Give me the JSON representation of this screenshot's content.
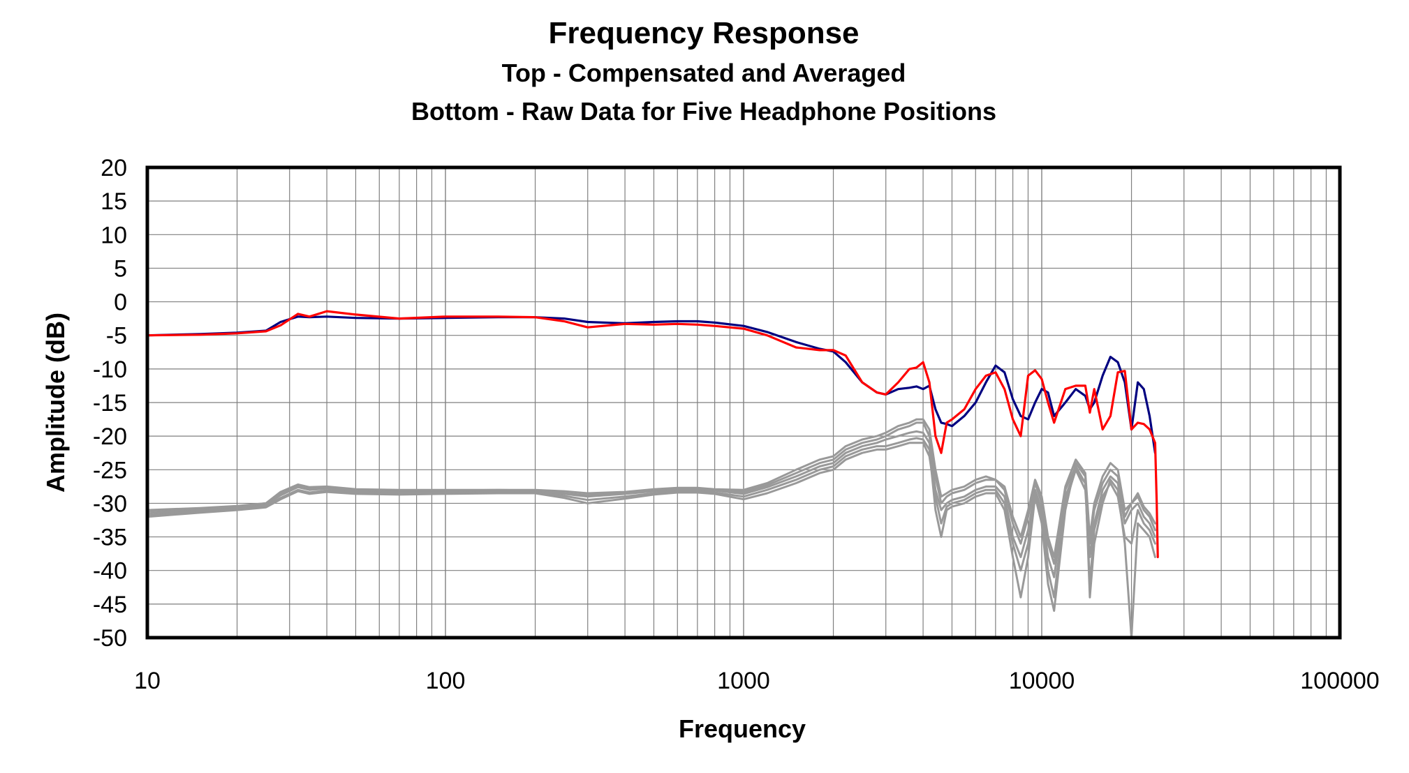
{
  "chart_data": {
    "type": "line",
    "title": "Frequency Response",
    "subtitle_lines": [
      "Top -  Compensated and Averaged",
      "Bottom - Raw Data for Five Headphone Positions"
    ],
    "xlabel": "Frequency",
    "ylabel": "Amplitude (dB)",
    "x_scale": "log",
    "xlim": [
      10,
      100000
    ],
    "ylim": [
      -50,
      20
    ],
    "x_ticks": [
      "10",
      "100",
      "1000",
      "10000",
      "100000"
    ],
    "y_ticks": [
      "20",
      "15",
      "10",
      "5",
      "0",
      "-5",
      "-10",
      "-15",
      "-20",
      "-25",
      "-30",
      "-35",
      "-40",
      "-45",
      "-50"
    ],
    "grid": true,
    "legend": "none",
    "series": [
      {
        "color": "#000080",
        "x": [
          10,
          15,
          20,
          25,
          28,
          32,
          35,
          40,
          50,
          70,
          100,
          150,
          200,
          250,
          300,
          400,
          500,
          600,
          700,
          800,
          1000,
          1200,
          1500,
          1800,
          2000,
          2200,
          2500,
          2800,
          3000,
          3300,
          3600,
          3800,
          4000,
          4200,
          4400,
          4600,
          4800,
          5000,
          5500,
          6000,
          6500,
          7000,
          7500,
          8000,
          8500,
          9000,
          9500,
          10000,
          10500,
          11000,
          12000,
          13000,
          14000,
          14500,
          15000,
          16000,
          17000,
          18000,
          19000,
          20000,
          21000,
          22000,
          23000,
          24000
        ],
        "y": [
          -5,
          -4.8,
          -4.6,
          -4.3,
          -3,
          -2.2,
          -2.3,
          -2.2,
          -2.4,
          -2.5,
          -2.4,
          -2.3,
          -2.3,
          -2.5,
          -3,
          -3.2,
          -3,
          -2.9,
          -2.9,
          -3.1,
          -3.6,
          -4.5,
          -6,
          -7,
          -7.4,
          -9,
          -12,
          -13.5,
          -13.8,
          -13,
          -12.8,
          -12.6,
          -13,
          -12.5,
          -16,
          -18,
          -18.2,
          -18.5,
          -17,
          -15,
          -12,
          -9.5,
          -10.5,
          -14.5,
          -17,
          -17.5,
          -15,
          -13,
          -13.5,
          -17,
          -15,
          -13,
          -14,
          -16,
          -15,
          -11,
          -8.2,
          -9,
          -12,
          -19,
          -12,
          -13,
          -17,
          -22.5
        ]
      },
      {
        "color": "#ff0000",
        "x": [
          10,
          15,
          20,
          25,
          28,
          32,
          35,
          40,
          50,
          70,
          100,
          150,
          200,
          250,
          300,
          400,
          500,
          600,
          700,
          800,
          1000,
          1200,
          1500,
          1800,
          2000,
          2200,
          2500,
          2800,
          3000,
          3300,
          3600,
          3800,
          4000,
          4200,
          4400,
          4600,
          4800,
          5000,
          5500,
          6000,
          6500,
          7000,
          7500,
          8000,
          8500,
          9000,
          9500,
          10000,
          10500,
          11000,
          12000,
          13000,
          14000,
          14500,
          15000,
          16000,
          17000,
          18000,
          19000,
          20000,
          21000,
          22000,
          23000,
          24000,
          24300,
          24500
        ],
        "y": [
          -5,
          -4.9,
          -4.7,
          -4.4,
          -3.5,
          -1.8,
          -2.2,
          -1.4,
          -1.9,
          -2.5,
          -2.2,
          -2.2,
          -2.3,
          -2.9,
          -3.8,
          -3.3,
          -3.4,
          -3.3,
          -3.4,
          -3.6,
          -4,
          -5,
          -6.8,
          -7.2,
          -7.2,
          -8,
          -12,
          -13.5,
          -13.8,
          -12,
          -10,
          -9.8,
          -9,
          -12,
          -20,
          -22.5,
          -18,
          -17.5,
          -16,
          -13,
          -11,
          -10.5,
          -13,
          -17.5,
          -20,
          -11,
          -10.2,
          -11.5,
          -15,
          -18,
          -13,
          -12.5,
          -12.5,
          -16.5,
          -13,
          -19,
          -17,
          -10.5,
          -10.3,
          -19,
          -18,
          -18.2,
          -19,
          -21,
          -30,
          -38
        ]
      },
      {
        "color": "#999999",
        "x": [
          10,
          15,
          20,
          25,
          28,
          32,
          35,
          40,
          50,
          70,
          100,
          150,
          200,
          250,
          300,
          400,
          500,
          600,
          700,
          800,
          1000,
          1200,
          1500,
          1800,
          2000,
          2200,
          2500,
          2800,
          3000,
          3300,
          3600,
          3800,
          4000,
          4200,
          4400,
          4600,
          4800,
          5000,
          5500,
          6000,
          6500,
          7000,
          7500,
          8000,
          8500,
          9000,
          9500,
          10000,
          10500,
          11000,
          12000,
          13000,
          14000,
          14500,
          15000,
          16000,
          17000,
          18000,
          19000,
          20000,
          21000,
          22000,
          23000,
          24000
        ],
        "y": [
          -31.5,
          -31,
          -30.6,
          -30.2,
          -28.8,
          -27.6,
          -28,
          -27.8,
          -28.2,
          -28.3,
          -28.2,
          -28.2,
          -28.2,
          -28.6,
          -29,
          -28.6,
          -28.2,
          -28,
          -28,
          -28.1,
          -28.6,
          -27.6,
          -26,
          -24.5,
          -24,
          -22.5,
          -21.5,
          -21,
          -20.5,
          -20,
          -19.5,
          -19.3,
          -19.5,
          -21,
          -28,
          -31,
          -30,
          -29.5,
          -29,
          -28,
          -27.5,
          -27.5,
          -29,
          -35,
          -38,
          -34,
          -28,
          -31,
          -38,
          -41,
          -29,
          -25,
          -28,
          -38,
          -33,
          -28,
          -26,
          -27,
          -33,
          -31,
          -30,
          -32,
          -33,
          -35
        ]
      },
      {
        "color": "#999999",
        "x": [
          10,
          15,
          20,
          25,
          28,
          32,
          35,
          40,
          50,
          70,
          100,
          150,
          200,
          250,
          300,
          400,
          500,
          600,
          700,
          800,
          1000,
          1200,
          1500,
          1800,
          2000,
          2200,
          2500,
          2800,
          3000,
          3300,
          3600,
          3800,
          4000,
          4200,
          4400,
          4600,
          4800,
          5000,
          5500,
          6000,
          6500,
          7000,
          7500,
          8000,
          8500,
          9000,
          9500,
          10000,
          10500,
          11000,
          12000,
          13000,
          14000,
          14500,
          15000,
          16000,
          17000,
          18000,
          19000,
          20000,
          21000,
          22000,
          23000,
          24000
        ],
        "y": [
          -31.8,
          -31.2,
          -30.8,
          -30.4,
          -29.2,
          -28,
          -28.4,
          -28.1,
          -28.4,
          -28.5,
          -28.4,
          -28.3,
          -28.4,
          -28.9,
          -29.5,
          -29,
          -28.5,
          -28.2,
          -28.2,
          -28.4,
          -29,
          -28,
          -26.5,
          -25,
          -24.5,
          -23,
          -22,
          -21.5,
          -21.5,
          -21,
          -20.5,
          -20.3,
          -20.5,
          -22,
          -31,
          -35,
          -31,
          -30.5,
          -30,
          -29,
          -28.5,
          -28.5,
          -31,
          -38,
          -44,
          -38,
          -29,
          -33,
          -42,
          -46,
          -31,
          -24,
          -26,
          -44,
          -36,
          -30,
          -26.5,
          -28,
          -36,
          -50,
          -33,
          -34,
          -35,
          -38
        ]
      },
      {
        "color": "#999999",
        "x": [
          10,
          15,
          20,
          25,
          28,
          32,
          35,
          40,
          50,
          70,
          100,
          150,
          200,
          250,
          300,
          400,
          500,
          600,
          700,
          800,
          1000,
          1200,
          1500,
          1800,
          2000,
          2200,
          2500,
          2800,
          3000,
          3300,
          3600,
          3800,
          4000,
          4200,
          4400,
          4600,
          4800,
          5000,
          5500,
          6000,
          6500,
          7000,
          7500,
          8000,
          8500,
          9000,
          9500,
          10000,
          10500,
          11000,
          12000,
          13000,
          14000,
          14500,
          15000,
          16000,
          17000,
          18000,
          19000,
          20000,
          21000,
          22000,
          23000,
          24000
        ],
        "y": [
          -31.2,
          -30.8,
          -30.5,
          -30,
          -28.5,
          -27.4,
          -27.8,
          -27.6,
          -28,
          -28.1,
          -28.1,
          -28,
          -28.1,
          -28.5,
          -28.8,
          -28.4,
          -28,
          -27.8,
          -27.8,
          -28,
          -28.3,
          -27.3,
          -25.5,
          -24,
          -23.5,
          -22,
          -21,
          -20.5,
          -20,
          -19,
          -18.5,
          -18,
          -18,
          -20,
          -26,
          -30,
          -29,
          -28.5,
          -28,
          -27,
          -26.5,
          -26.5,
          -28,
          -33,
          -36,
          -32,
          -27,
          -30,
          -36,
          -39,
          -28,
          -24.5,
          -27,
          -36,
          -31,
          -27,
          -25,
          -26,
          -32,
          -30,
          -29,
          -31,
          -32,
          -34
        ]
      },
      {
        "color": "#999999",
        "x": [
          10,
          15,
          20,
          25,
          28,
          32,
          35,
          40,
          50,
          70,
          100,
          150,
          200,
          250,
          300,
          400,
          500,
          600,
          700,
          800,
          1000,
          1200,
          1500,
          1800,
          2000,
          2200,
          2500,
          2800,
          3000,
          3300,
          3600,
          3800,
          4000,
          4200,
          4400,
          4600,
          4800,
          5000,
          5500,
          6000,
          6500,
          7000,
          7500,
          8000,
          8500,
          9000,
          9500,
          10000,
          10500,
          11000,
          12000,
          13000,
          14000,
          14500,
          15000,
          16000,
          17000,
          18000,
          19000,
          20000,
          21000,
          22000,
          23000,
          24000
        ],
        "y": [
          -32,
          -31.4,
          -31,
          -30.6,
          -29.4,
          -28.2,
          -28.6,
          -28.3,
          -28.6,
          -28.7,
          -28.6,
          -28.5,
          -28.5,
          -29.2,
          -30,
          -29.3,
          -28.7,
          -28.4,
          -28.4,
          -28.6,
          -29.4,
          -28.5,
          -27,
          -25.5,
          -25,
          -23.5,
          -22.5,
          -22,
          -22,
          -21.5,
          -21,
          -21,
          -21,
          -23,
          -29,
          -33,
          -30.5,
          -30,
          -29.5,
          -28.5,
          -28,
          -28,
          -30,
          -36,
          -40,
          -36,
          -28.5,
          -32,
          -40,
          -44,
          -30,
          -25,
          -27,
          -42,
          -34,
          -29,
          -27,
          -29,
          -35,
          -36,
          -31,
          -33,
          -34,
          -36
        ]
      },
      {
        "color": "#999999",
        "x": [
          10,
          15,
          20,
          25,
          28,
          32,
          35,
          40,
          50,
          70,
          100,
          150,
          200,
          250,
          300,
          400,
          500,
          600,
          700,
          800,
          1000,
          1200,
          1500,
          1800,
          2000,
          2200,
          2500,
          2800,
          3000,
          3300,
          3600,
          3800,
          4000,
          4200,
          4400,
          4600,
          4800,
          5000,
          5500,
          6000,
          6500,
          7000,
          7500,
          8000,
          8500,
          9000,
          9500,
          10000,
          10500,
          11000,
          12000,
          13000,
          14000,
          14500,
          15000,
          16000,
          17000,
          18000,
          19000,
          20000,
          21000,
          22000,
          23000,
          24000
        ],
        "y": [
          -31,
          -30.7,
          -30.4,
          -30,
          -28.3,
          -27.2,
          -27.6,
          -27.5,
          -27.9,
          -28,
          -28,
          -28,
          -28,
          -28.2,
          -28.5,
          -28.3,
          -27.9,
          -27.7,
          -27.7,
          -27.9,
          -28,
          -27,
          -25,
          -23.5,
          -23,
          -21.5,
          -20.5,
          -20,
          -19.5,
          -18.5,
          -18,
          -17.5,
          -17.5,
          -19,
          -25,
          -29,
          -28.5,
          -28,
          -27.5,
          -26.5,
          -26,
          -26.5,
          -27.5,
          -32,
          -35,
          -31,
          -26.5,
          -29,
          -35,
          -38,
          -27.5,
          -23.5,
          -25.5,
          -35,
          -30,
          -26,
          -24,
          -25,
          -31,
          -30,
          -28.5,
          -30.5,
          -31.5,
          -33
        ]
      }
    ]
  }
}
